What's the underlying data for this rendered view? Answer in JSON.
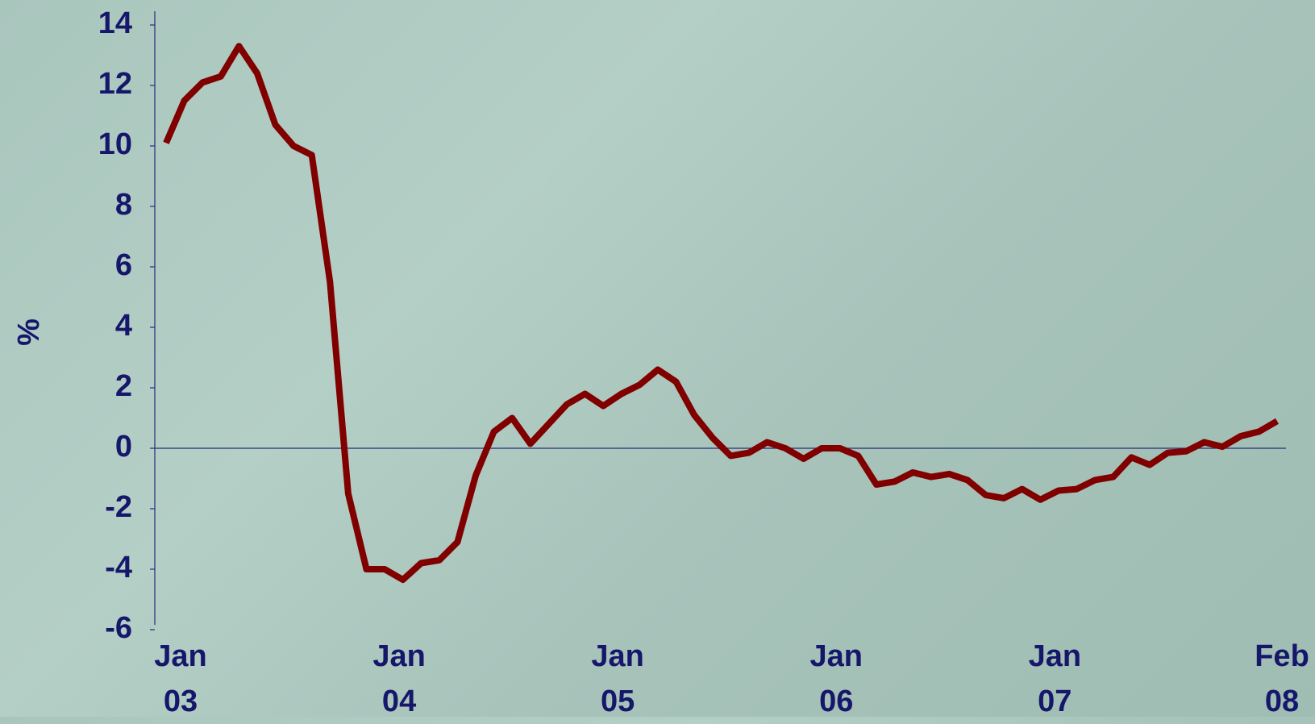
{
  "chart_data": {
    "type": "line",
    "ylabel": "%",
    "categories": [
      "Jan 03",
      null,
      null,
      null,
      null,
      null,
      null,
      null,
      null,
      null,
      null,
      null,
      "Jan 04",
      null,
      null,
      null,
      null,
      null,
      null,
      null,
      null,
      null,
      null,
      null,
      "Jan 05",
      null,
      null,
      null,
      null,
      null,
      null,
      null,
      null,
      null,
      null,
      null,
      "Jan 06",
      null,
      null,
      null,
      null,
      null,
      null,
      null,
      null,
      null,
      null,
      null,
      "Jan 07",
      null,
      null,
      null,
      null,
      null,
      null,
      null,
      null,
      null,
      null,
      null,
      null,
      "Feb 08"
    ],
    "values": [
      10.1,
      11.5,
      12.1,
      12.3,
      13.3,
      12.4,
      10.7,
      10.0,
      9.7,
      5.5,
      -1.5,
      -4.0,
      -4.0,
      -4.35,
      -3.8,
      -3.7,
      -3.1,
      -0.9,
      0.55,
      1.0,
      0.15,
      0.8,
      1.45,
      1.8,
      1.4,
      1.8,
      2.1,
      2.6,
      2.2,
      1.1,
      0.35,
      -0.25,
      -0.15,
      0.2,
      0,
      -0.35,
      0,
      0,
      -0.25,
      -1.2,
      -1.1,
      -0.8,
      -0.95,
      -0.85,
      -1.05,
      -1.55,
      -1.65,
      -1.35,
      -1.7,
      -1.4,
      -1.35,
      -1.05,
      -0.95,
      -0.3,
      -0.55,
      -0.15,
      -0.1,
      0.2,
      0.05,
      0.4,
      0.55,
      0.9
    ],
    "color": "#800000",
    "ylim": [
      -6,
      14
    ],
    "yticks": [
      -6,
      -4,
      -2,
      0,
      2,
      4,
      6,
      8,
      10,
      12,
      14
    ]
  }
}
